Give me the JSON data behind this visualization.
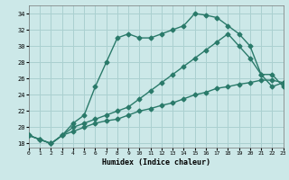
{
  "title": "",
  "xlabel": "Humidex (Indice chaleur)",
  "bg_color": "#cce8e8",
  "grid_color": "#aad0d0",
  "line_color": "#2a7a6a",
  "xlim": [
    0,
    23
  ],
  "ylim": [
    17.5,
    35.0
  ],
  "xticks": [
    0,
    1,
    2,
    3,
    4,
    5,
    6,
    7,
    8,
    9,
    10,
    11,
    12,
    13,
    14,
    15,
    16,
    17,
    18,
    19,
    20,
    21,
    22,
    23
  ],
  "yticks": [
    18,
    20,
    22,
    24,
    26,
    28,
    30,
    32,
    34
  ],
  "line1_x": [
    0,
    1,
    2,
    3,
    4,
    5,
    6,
    7,
    8,
    9,
    10,
    11,
    12,
    13,
    14,
    15,
    16,
    17,
    18,
    19,
    20,
    21,
    22,
    23
  ],
  "line1_y": [
    19.0,
    18.5,
    18.0,
    19.0,
    20.5,
    21.5,
    25.0,
    28.0,
    31.0,
    31.5,
    31.0,
    31.0,
    31.5,
    32.0,
    32.5,
    34.0,
    33.8,
    33.5,
    32.5,
    31.5,
    30.0,
    26.5,
    26.5,
    25.0
  ],
  "line2_x": [
    0,
    1,
    2,
    3,
    4,
    5,
    6,
    7,
    8,
    9,
    10,
    11,
    12,
    13,
    14,
    15,
    16,
    17,
    18,
    19,
    20,
    21,
    22,
    23
  ],
  "line2_y": [
    19.0,
    18.5,
    18.0,
    19.0,
    20.0,
    20.5,
    21.0,
    21.5,
    22.0,
    22.5,
    23.5,
    24.5,
    25.5,
    26.5,
    27.5,
    28.5,
    29.5,
    30.5,
    31.5,
    30.0,
    28.5,
    26.5,
    25.0,
    25.5
  ],
  "line3_x": [
    0,
    1,
    2,
    3,
    4,
    5,
    6,
    7,
    8,
    9,
    10,
    11,
    12,
    13,
    14,
    15,
    16,
    17,
    18,
    19,
    20,
    21,
    22,
    23
  ],
  "line3_y": [
    19.0,
    18.5,
    18.0,
    19.0,
    19.5,
    20.0,
    20.5,
    20.8,
    21.0,
    21.5,
    22.0,
    22.3,
    22.7,
    23.0,
    23.5,
    24.0,
    24.3,
    24.8,
    25.0,
    25.3,
    25.5,
    25.8,
    25.8,
    25.5
  ],
  "marker_size": 2.5,
  "line_width": 1.0
}
